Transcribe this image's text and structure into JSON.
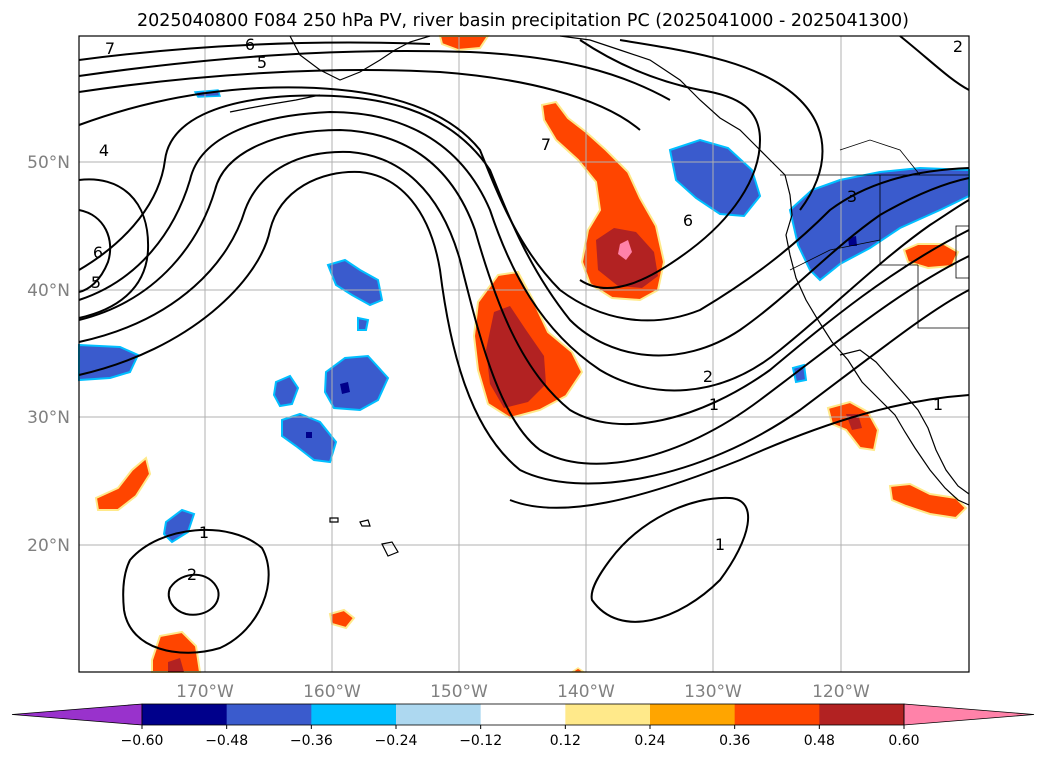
{
  "title": "2025040800 F084 250 hPa PV, river basin precipitation PC (2025041000 - 2025041300)",
  "lat_ticks": [
    "50°N",
    "40°N",
    "30°N",
    "20°N"
  ],
  "lon_ticks": [
    "170°W",
    "160°W",
    "150°W",
    "140°W",
    "130°W",
    "120°W"
  ],
  "colorbar": {
    "ticks": [
      "−0.60",
      "−0.48",
      "−0.36",
      "−0.24",
      "−0.12",
      "0.12",
      "0.24",
      "0.36",
      "0.48",
      "0.60"
    ],
    "colors": [
      "#9932cc",
      "#00008b",
      "#3a5bcd",
      "#00bfff",
      "#add8f0",
      "#ffffff",
      "#ffe98a",
      "#ffa500",
      "#ff4500",
      "#b22222",
      "#ff82a9"
    ]
  },
  "contour_labels": {
    "c7": "7",
    "c6a": "6",
    "c5a": "5",
    "c4": "4",
    "c6b": "6",
    "c5b": "5",
    "c7b": "7",
    "c6c": "6",
    "c3": "3",
    "c2a": "2",
    "c1a": "1",
    "c1b": "1",
    "c2b": "2",
    "c1c": "1",
    "c1d": "1",
    "c2c": "2"
  },
  "colors": {
    "neg_strong": "#00008b",
    "neg_mid": "#3a5bcd",
    "neg_light": "#00bfff",
    "pos_light": "#ffa500",
    "pos_mid": "#ff4500",
    "pos_strong": "#b22222",
    "pos_max": "#ff82a9"
  }
}
